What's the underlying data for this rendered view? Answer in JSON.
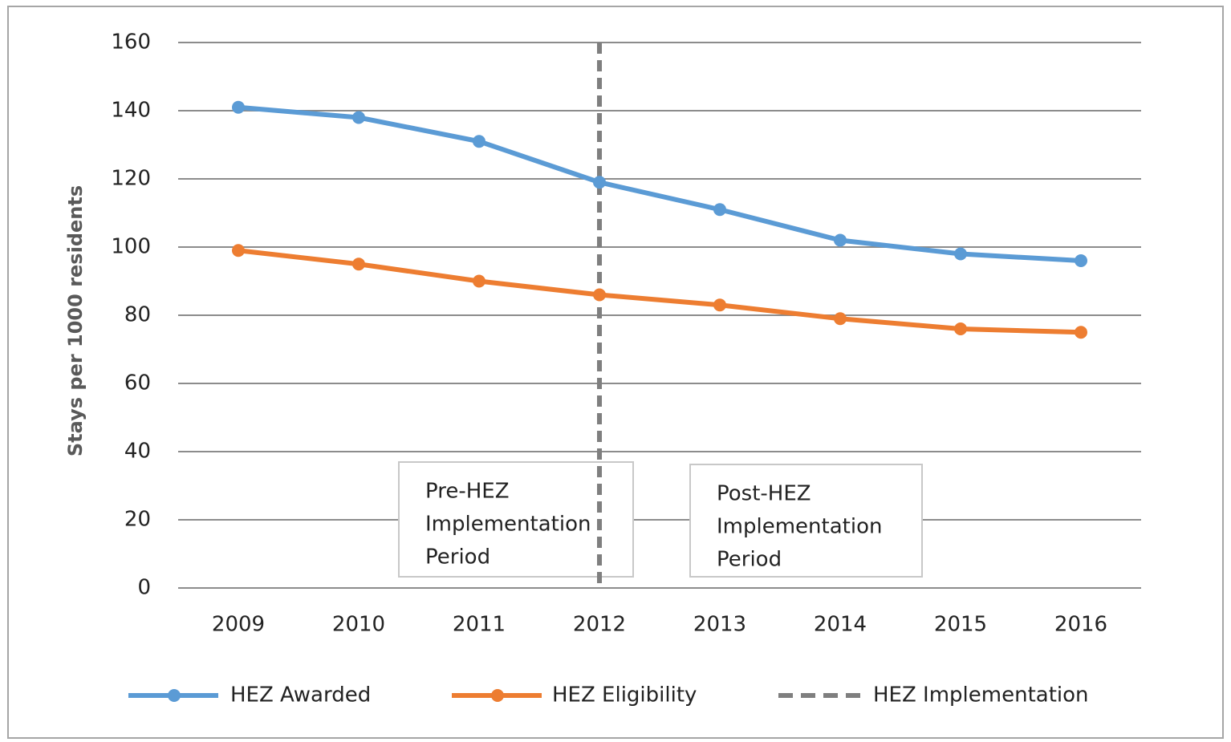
{
  "chart_data": {
    "type": "line",
    "y_label": "Stays per 1000 residents",
    "categories": [
      "2009",
      "2010",
      "2011",
      "2012",
      "2013",
      "2014",
      "2015",
      "2016"
    ],
    "series": [
      {
        "name": "HEZ Awarded",
        "color": "#5b9bd5",
        "values": [
          141,
          138,
          131,
          119,
          111,
          102,
          98,
          96
        ]
      },
      {
        "name": "HEZ Eligibility",
        "color": "#ed7d31",
        "values": [
          99,
          95,
          90,
          86,
          83,
          79,
          76,
          75
        ]
      }
    ],
    "reference_lines": [
      {
        "name": "HEZ Implementation",
        "color": "#7f7f7f",
        "dashed": true,
        "x": 3.5
      }
    ],
    "annotations": [
      {
        "lines": [
          "Pre-HEZ",
          "Implementation",
          "Period"
        ]
      },
      {
        "lines": [
          "Post-HEZ",
          "Implementation",
          "Period"
        ]
      }
    ],
    "ylim": [
      0,
      160
    ],
    "yticks": [
      0,
      20,
      40,
      60,
      80,
      100,
      120,
      140,
      160
    ],
    "grid": true,
    "legend": "bottom"
  }
}
